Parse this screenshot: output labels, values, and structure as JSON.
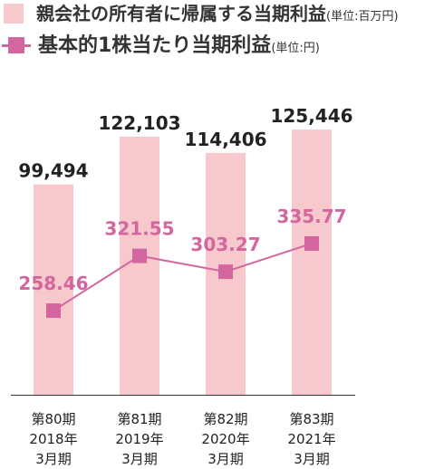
{
  "legend": {
    "bar_label": "親会社の所有者に帰属する当期利益",
    "bar_unit": "(単位:百万円)",
    "line_label": "基本的1株当たり当期利益",
    "line_unit": "(単位:円)"
  },
  "chart_data": {
    "type": "bar",
    "categories": [
      "第80期\n2018年\n3月期",
      "第81期\n2019年\n3月期",
      "第82期\n2020年\n3月期",
      "第83期\n2021年\n3月期"
    ],
    "series": [
      {
        "name": "親会社の所有者に帰属する当期利益",
        "type": "bar",
        "unit": "百万円",
        "values": [
          99494,
          122103,
          114406,
          125446
        ],
        "labels": [
          "99,494",
          "122,103",
          "114,406",
          "125,446"
        ]
      },
      {
        "name": "基本的1株当たり当期利益",
        "type": "line",
        "unit": "円",
        "values": [
          258.46,
          321.55,
          303.27,
          335.77
        ],
        "labels": [
          "258.46",
          "321.55",
          "303.27",
          "335.77"
        ]
      }
    ],
    "title": "",
    "xlabel": "",
    "ylabel": "",
    "grid": false,
    "legend_position": "top-left",
    "colors": {
      "bar": "#f7c9cd",
      "line": "#d3669f",
      "bar_label": "#222222",
      "line_label": "#d3669f",
      "axis": "#333333"
    }
  }
}
